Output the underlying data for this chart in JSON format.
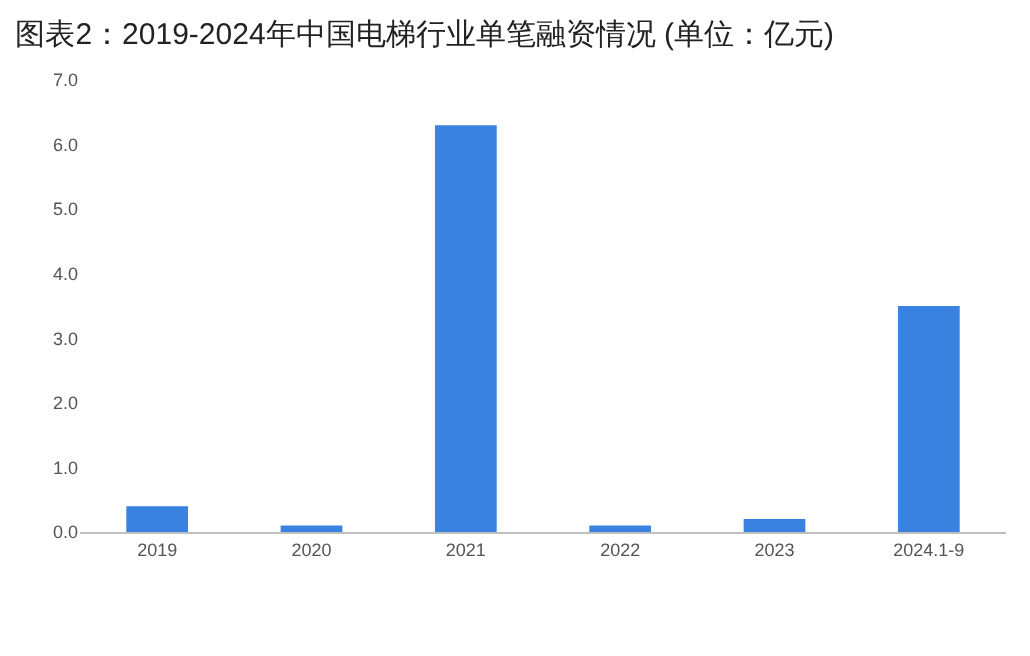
{
  "chart_data": {
    "type": "bar",
    "title": "图表2：2019-2024年中国电梯行业单笔融资情况 (单位：亿元)",
    "categories": [
      "2019",
      "2020",
      "2021",
      "2022",
      "2023",
      "2024.1-9"
    ],
    "values": [
      0.4,
      0.1,
      6.3,
      0.1,
      0.2,
      3.5
    ],
    "color": "#3a82e0",
    "ylim": [
      0,
      7
    ],
    "yticks": [
      {
        "value": 0,
        "label": "0.0"
      },
      {
        "value": 1,
        "label": "1.0"
      },
      {
        "value": 2,
        "label": "2.0"
      },
      {
        "value": 3,
        "label": "3.0"
      },
      {
        "value": 4,
        "label": "4.0"
      },
      {
        "value": 5,
        "label": "5.0"
      },
      {
        "value": 6,
        "label": "6.0"
      },
      {
        "value": 7,
        "label": "7.0"
      }
    ],
    "grid": false
  }
}
